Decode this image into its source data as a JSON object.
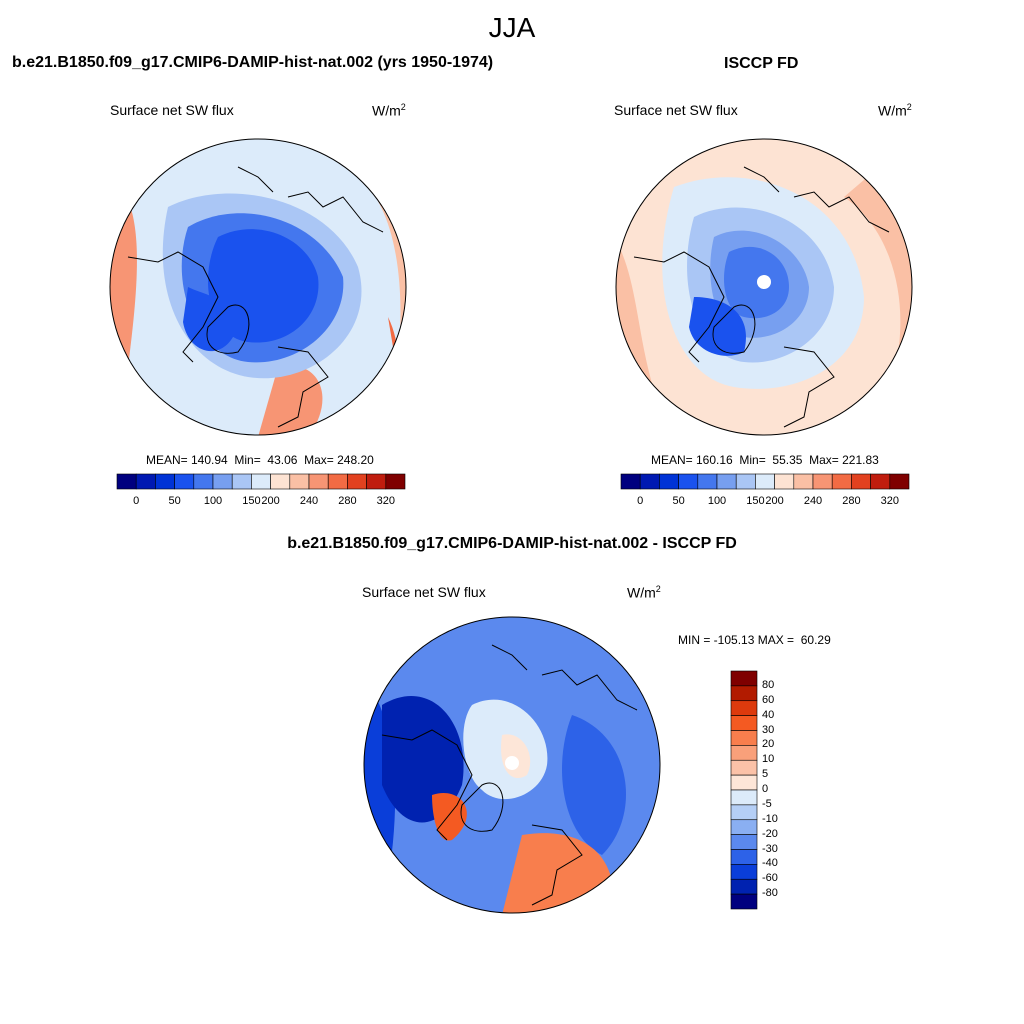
{
  "main_title": "JJA",
  "panels": [
    {
      "title": "b.e21.B1850.f09_g17.CMIP6-DAMIP-hist-nat.002 (yrs 1950-1974)",
      "variable": "Surface net SW flux",
      "units": "W/m",
      "units_sup": "2",
      "stats": "MEAN= 140.94  Min=  43.06  Max= 248.20"
    },
    {
      "title": "ISCCP FD",
      "variable": "Surface net SW flux",
      "units": "W/m",
      "units_sup": "2",
      "stats": "MEAN= 160.16  Min=  55.35  Max= 221.83"
    },
    {
      "title": "b.e21.B1850.f09_g17.CMIP6-DAMIP-hist-nat.002 - ISCCP FD",
      "variable": "Surface net SW flux",
      "units": "W/m",
      "units_sup": "2",
      "stats": "MIN = -105.13 MAX =  60.29"
    }
  ],
  "abs_colorbar": {
    "colors": [
      "#00007f",
      "#0019b2",
      "#0033d6",
      "#1a52ee",
      "#4477ee",
      "#779ff0",
      "#aac6f5",
      "#dcebfa",
      "#fde3d3",
      "#fac0a5",
      "#f79574",
      "#f26b44",
      "#e2411f",
      "#c01d0e",
      "#7f0000"
    ],
    "tick_labels": [
      "0",
      "50",
      "100",
      "150",
      "200",
      "240",
      "280",
      "320"
    ]
  },
  "diff_colorbar": {
    "colors": [
      "#7f0000",
      "#b21b00",
      "#dd3a0d",
      "#f45a22",
      "#f87e4d",
      "#f9a07a",
      "#fbc2a8",
      "#fde6d8",
      "#dcebfa",
      "#b5cff6",
      "#8aaff2",
      "#5b89ee",
      "#2d62e8",
      "#0a3ed9",
      "#0022b0",
      "#00007f"
    ],
    "tick_labels": [
      "80",
      "60",
      "40",
      "30",
      "20",
      "10",
      "5",
      "0",
      "-5",
      "-10",
      "-20",
      "-30",
      "-40",
      "-60",
      "-80"
    ]
  },
  "map_colors": {
    "deep_blue": "#0a2fc4",
    "mid_blue": "#2d62e8",
    "light_blue": "#aac6f5",
    "pale_blue": "#dcebfa",
    "pale_orange": "#fde3d3",
    "orange": "#f79574",
    "red": "#e2411f",
    "coastline": "#000000"
  }
}
